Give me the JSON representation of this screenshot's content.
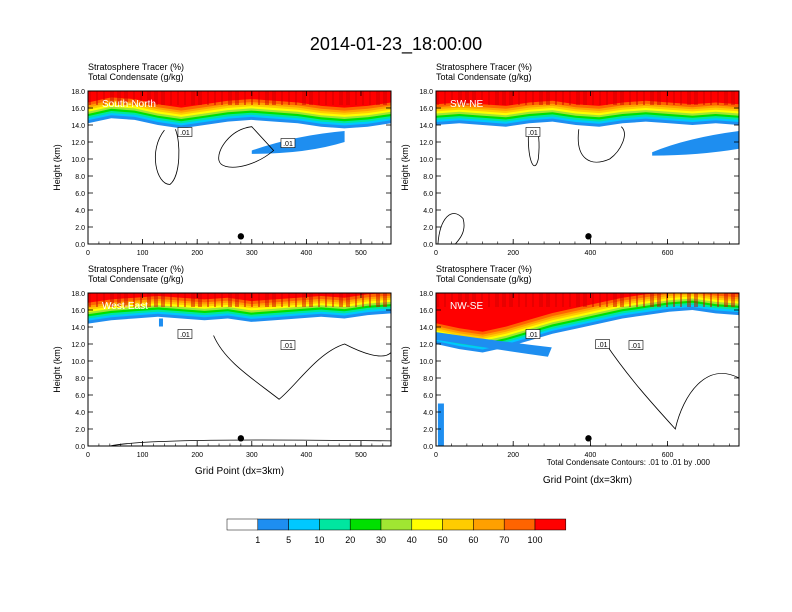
{
  "figure": {
    "title": "2014-01-23_18:00:00",
    "footnote": "Total Condensate Contours: .01 to .01 by .000"
  },
  "colorbar": {
    "labels": [
      "1",
      "5",
      "10",
      "20",
      "30",
      "40",
      "50",
      "60",
      "70",
      "100"
    ],
    "colors": [
      "#ffffff",
      "#1e8ef0",
      "#00c8ff",
      "#00e6a0",
      "#00e000",
      "#a0e632",
      "#ffff00",
      "#ffcc00",
      "#ffa000",
      "#ff6400",
      "#ff0000"
    ]
  },
  "chart_data": [
    {
      "type": "filled-contour",
      "label": "South-North",
      "subtitle_line1": "Stratosphere Tracer   (%)",
      "subtitle_line2": "Total Condensate   (g/kg)",
      "ylabel": "Height (km)",
      "xlabel": "",
      "xlim": [
        0,
        555
      ],
      "ylim": [
        0,
        18
      ],
      "xticks": [
        0,
        100,
        200,
        300,
        400,
        500
      ],
      "yticks": [
        "0.0",
        "2.0",
        "4.0",
        "6.0",
        "8.0",
        "10.0",
        "12.0",
        "14.0",
        "16.0",
        "18.0"
      ],
      "marker_x": 280,
      "contour_labels": [
        ".01",
        ".01"
      ],
      "tracer_base_km": [
        14.2,
        14.8,
        14.6,
        14.0,
        13.6,
        14.0,
        14.4,
        14.6,
        14.4,
        14.2,
        13.8,
        13.6,
        13.8,
        14.2
      ]
    },
    {
      "type": "filled-contour",
      "label": "SW-NE",
      "subtitle_line1": "Stratosphere Tracer   (%)",
      "subtitle_line2": "Total Condensate   (g/kg)",
      "ylabel": "Height (km)",
      "xlabel": "",
      "xlim": [
        0,
        785
      ],
      "ylim": [
        0,
        18
      ],
      "xticks": [
        0,
        200,
        400,
        600
      ],
      "yticks": [
        "0.0",
        "2.0",
        "4.0",
        "6.0",
        "8.0",
        "10.0",
        "12.0",
        "14.0",
        "16.0",
        "18.0"
      ],
      "marker_x": 395,
      "contour_labels": [
        ".01"
      ],
      "tracer_base_km": [
        14.0,
        14.2,
        14.0,
        13.8,
        14.2,
        14.4,
        14.0,
        13.8,
        14.2,
        14.4,
        14.2,
        14.0,
        14.2,
        14.0
      ]
    },
    {
      "type": "filled-contour",
      "label": "West-East",
      "subtitle_line1": "Stratosphere Tracer   (%)",
      "subtitle_line2": "Total Condensate   (g/kg)",
      "ylabel": "Height (km)",
      "xlabel": "Grid Point (dx=3km)",
      "xlim": [
        0,
        555
      ],
      "ylim": [
        0,
        18
      ],
      "xticks": [
        0,
        100,
        200,
        300,
        400,
        500
      ],
      "yticks": [
        "0.0",
        "2.0",
        "4.0",
        "6.0",
        "8.0",
        "10.0",
        "12.0",
        "14.0",
        "16.0",
        "18.0"
      ],
      "marker_x": 280,
      "contour_labels": [
        ".01",
        ".01"
      ],
      "tracer_base_km": [
        14.4,
        14.8,
        15.0,
        15.2,
        15.0,
        14.8,
        15.0,
        14.6,
        14.8,
        15.0,
        15.2,
        15.0,
        15.4,
        15.6
      ]
    },
    {
      "type": "filled-contour",
      "label": "NW-SE",
      "subtitle_line1": "Stratosphere Tracer   (%)",
      "subtitle_line2": "Total Condensate   (g/kg)",
      "ylabel": "Height (km)",
      "xlabel": "Grid Point (dx=3km)",
      "xlim": [
        0,
        785
      ],
      "ylim": [
        0,
        18
      ],
      "xticks": [
        0,
        200,
        400,
        600
      ],
      "yticks": [
        "0.0",
        "2.0",
        "4.0",
        "6.0",
        "8.0",
        "10.0",
        "12.0",
        "14.0",
        "16.0",
        "18.0"
      ],
      "marker_x": 395,
      "contour_labels": [
        ".01",
        ".01",
        ".01"
      ],
      "tracer_base_km": [
        12.0,
        11.4,
        11.0,
        11.6,
        12.4,
        13.2,
        13.8,
        14.4,
        15.0,
        15.4,
        15.8,
        16.0,
        15.6,
        15.4
      ]
    }
  ]
}
